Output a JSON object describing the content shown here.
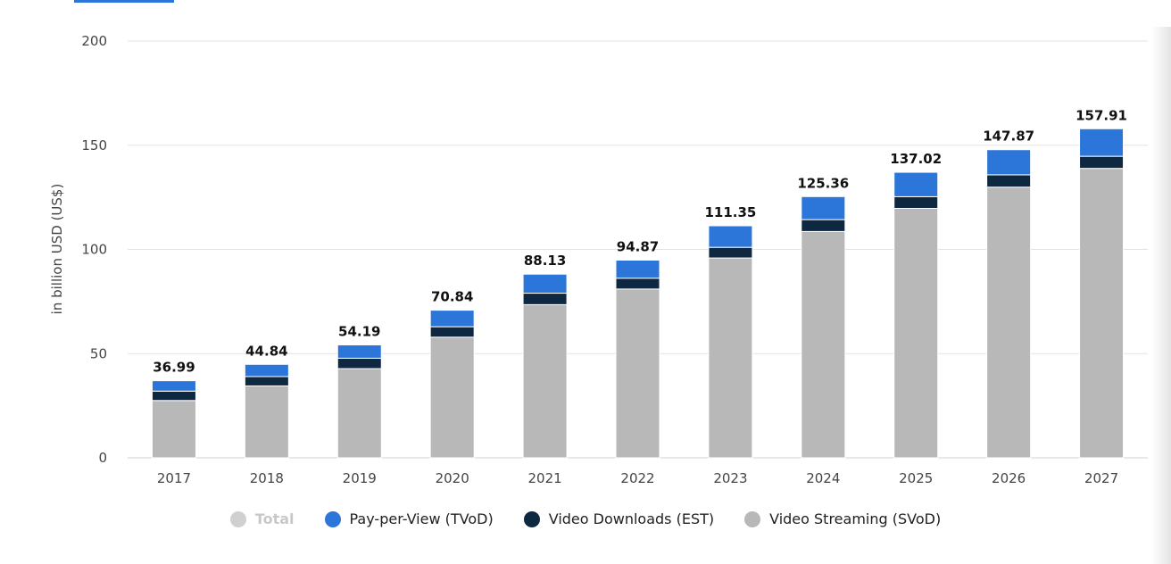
{
  "chart_data": {
    "type": "bar",
    "stacked": true,
    "ylabel": "in billion USD (US$)",
    "ylim": [
      0,
      200
    ],
    "yticks": [
      0,
      50,
      100,
      150,
      200
    ],
    "grid": true,
    "legend_position": "bottom",
    "categories": [
      "2017",
      "2018",
      "2019",
      "2020",
      "2021",
      "2022",
      "2023",
      "2024",
      "2025",
      "2026",
      "2027"
    ],
    "totals": [
      36.99,
      44.84,
      54.19,
      70.84,
      88.13,
      94.87,
      111.35,
      125.36,
      137.02,
      147.87,
      157.91
    ],
    "total_labels": [
      "36.99",
      "44.84",
      "54.19",
      "70.84",
      "88.13",
      "94.87",
      "111.35",
      "125.36",
      "137.02",
      "147.87",
      "157.91"
    ],
    "series": [
      {
        "name": "Video Streaming (SVoD)",
        "color": "#b8b8b8",
        "values": [
          27.5,
          34.5,
          42.8,
          57.9,
          73.5,
          81.0,
          95.9,
          108.6,
          119.7,
          129.9,
          138.9
        ]
      },
      {
        "name": "Video Downloads (EST)",
        "color": "#0f2842",
        "values": [
          4.5,
          4.5,
          5.0,
          5.0,
          5.5,
          5.2,
          5.1,
          5.7,
          5.6,
          5.9,
          5.8
        ]
      },
      {
        "name": "Pay-per-View (TVoD)",
        "color": "#2d76d9",
        "values": [
          4.99,
          5.84,
          6.39,
          7.94,
          9.13,
          8.67,
          10.35,
          11.06,
          11.72,
          12.07,
          13.21
        ]
      }
    ],
    "legend": [
      {
        "name": "Total",
        "color": "#d0d0d0",
        "active": false
      },
      {
        "name": "Pay-per-View (TVoD)",
        "color": "#2d76d9",
        "active": true
      },
      {
        "name": "Video Downloads (EST)",
        "color": "#0f2842",
        "active": true
      },
      {
        "name": "Video Streaming (SVoD)",
        "color": "#b8b8b8",
        "active": true
      }
    ]
  }
}
